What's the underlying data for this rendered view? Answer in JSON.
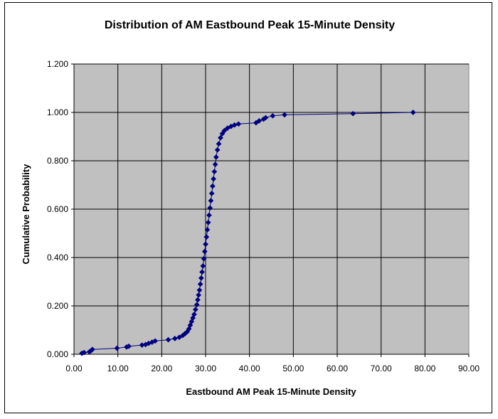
{
  "chart_data": {
    "type": "scatter",
    "title": "Distribution of AM Eastbound Peak 15-Minute Density",
    "xlabel": "Eastbound AM  Peak 15-Minute Density",
    "ylabel": "Cumulative Probability",
    "xlim": [
      0,
      90
    ],
    "ylim": [
      0,
      1.2
    ],
    "x_ticks": [
      "0.00",
      "10.00",
      "20.00",
      "30.00",
      "40.00",
      "50.00",
      "60.00",
      "70.00",
      "80.00",
      "90.00"
    ],
    "y_ticks": [
      "0.000",
      "0.200",
      "0.400",
      "0.600",
      "0.800",
      "1.000",
      "1.200"
    ],
    "grid": true,
    "plot_background": "#c0c0c0",
    "series_color": "#000080",
    "marker": "diamond",
    "connect_points": true,
    "series": [
      {
        "points": [
          [
            1.8,
            0.004
          ],
          [
            2.3,
            0.007
          ],
          [
            3.5,
            0.01
          ],
          [
            3.9,
            0.015
          ],
          [
            4.2,
            0.02
          ],
          [
            9.8,
            0.025
          ],
          [
            12.0,
            0.03
          ],
          [
            12.5,
            0.033
          ],
          [
            15.5,
            0.038
          ],
          [
            16.3,
            0.04
          ],
          [
            17.0,
            0.045
          ],
          [
            17.8,
            0.05
          ],
          [
            18.5,
            0.055
          ],
          [
            21.5,
            0.06
          ],
          [
            23.0,
            0.065
          ],
          [
            24.0,
            0.07
          ],
          [
            24.8,
            0.078
          ],
          [
            25.3,
            0.085
          ],
          [
            25.8,
            0.093
          ],
          [
            26.2,
            0.105
          ],
          [
            26.5,
            0.12
          ],
          [
            26.8,
            0.135
          ],
          [
            27.1,
            0.15
          ],
          [
            27.4,
            0.165
          ],
          [
            27.7,
            0.185
          ],
          [
            28.0,
            0.205
          ],
          [
            28.2,
            0.225
          ],
          [
            28.4,
            0.245
          ],
          [
            28.6,
            0.265
          ],
          [
            28.8,
            0.29
          ],
          [
            29.0,
            0.315
          ],
          [
            29.2,
            0.34
          ],
          [
            29.4,
            0.365
          ],
          [
            29.6,
            0.395
          ],
          [
            29.8,
            0.425
          ],
          [
            30.0,
            0.455
          ],
          [
            30.2,
            0.485
          ],
          [
            30.4,
            0.515
          ],
          [
            30.6,
            0.545
          ],
          [
            30.8,
            0.575
          ],
          [
            31.0,
            0.605
          ],
          [
            31.2,
            0.635
          ],
          [
            31.4,
            0.665
          ],
          [
            31.6,
            0.695
          ],
          [
            31.8,
            0.725
          ],
          [
            32.0,
            0.755
          ],
          [
            32.2,
            0.785
          ],
          [
            32.4,
            0.815
          ],
          [
            32.7,
            0.845
          ],
          [
            33.0,
            0.87
          ],
          [
            33.4,
            0.895
          ],
          [
            33.8,
            0.912
          ],
          [
            34.3,
            0.925
          ],
          [
            35.0,
            0.935
          ],
          [
            35.8,
            0.942
          ],
          [
            36.6,
            0.948
          ],
          [
            37.5,
            0.952
          ],
          [
            41.5,
            0.957
          ],
          [
            42.2,
            0.965
          ],
          [
            43.2,
            0.972
          ],
          [
            43.7,
            0.978
          ],
          [
            45.3,
            0.986
          ],
          [
            48.0,
            0.99
          ],
          [
            63.6,
            0.995
          ],
          [
            77.3,
            1.0
          ]
        ]
      }
    ]
  }
}
